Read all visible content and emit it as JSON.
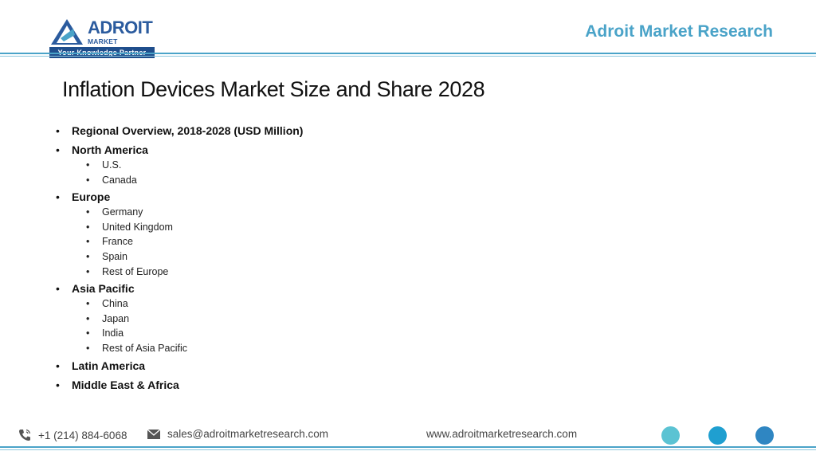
{
  "logo": {
    "brand": "ADROIT",
    "sub": "MARKET RESEARCH",
    "tagline": "Your Knowledge Partner"
  },
  "header": {
    "brand": "Adroit Market Research"
  },
  "title": "Inflation Devices Market Size and Share 2028",
  "list": [
    {
      "label": "Regional Overview, 2018-2028 (USD Million)",
      "children": []
    },
    {
      "label": "North America",
      "children": [
        "U.S.",
        "Canada"
      ]
    },
    {
      "label": "Europe",
      "children": [
        "Germany",
        "United Kingdom",
        "France",
        "Spain",
        "Rest of Europe"
      ]
    },
    {
      "label": "Asia Pacific",
      "children": [
        "China",
        "Japan",
        "India",
        "Rest of Asia Pacific"
      ]
    },
    {
      "label": "Latin America",
      "children": []
    },
    {
      "label": "Middle East & Africa",
      "children": []
    }
  ],
  "footer": {
    "phone": "+1 (214) 884-6068",
    "email": "sales@adroitmarketresearch.com",
    "website": "www.adroitmarketresearch.com"
  },
  "colors": {
    "accent": "#4aa3c8",
    "brand": "#2b5b9e",
    "dots": [
      "#5bc3d3",
      "#1f9fd0",
      "#2f86c2"
    ]
  }
}
